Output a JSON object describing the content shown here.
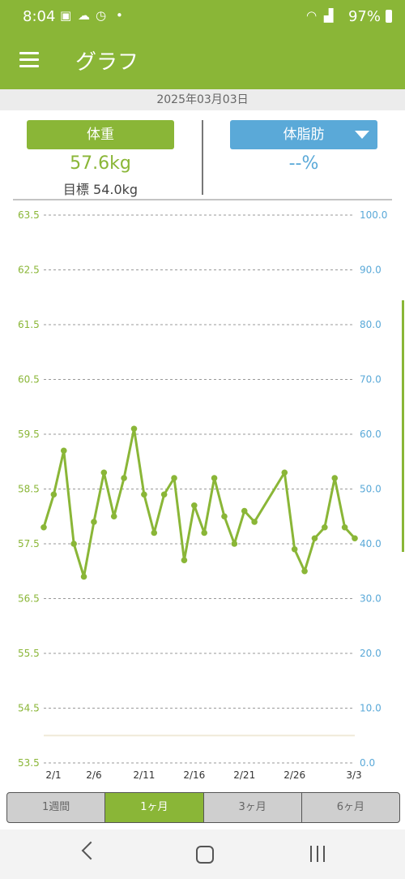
{
  "status": {
    "time": "8:04",
    "battery": "97%"
  },
  "app": {
    "title": "グラフ",
    "date": "2025年03月03日"
  },
  "weight": {
    "button": "体重",
    "value": "57.6kg",
    "target": "目標 54.0kg"
  },
  "fat": {
    "button": "体脂肪",
    "value": "--%"
  },
  "colors": {
    "accent": "#8ab637",
    "blue": "#5aa9d8"
  },
  "chart_data": {
    "type": "line",
    "y_left_ticks": [
      "63.5",
      "62.5",
      "61.5",
      "60.5",
      "59.5",
      "58.5",
      "57.5",
      "56.5",
      "55.5",
      "54.5",
      "53.5"
    ],
    "y_right_ticks": [
      "100.0",
      "90.0",
      "80.0",
      "70.0",
      "60.0",
      "50.0",
      "40.0",
      "30.0",
      "20.0",
      "10.0",
      "0.0"
    ],
    "x_ticks": [
      "2/1",
      "2/6",
      "2/11",
      "2/16",
      "2/21",
      "2/26",
      "3/3"
    ],
    "ylim_left": [
      53.5,
      63.5
    ],
    "ylim_right": [
      0,
      100
    ],
    "target": 54.0,
    "series": [
      {
        "values": [
          {
            "x": "2/1",
            "y": 57.8
          },
          {
            "x": "2/2",
            "y": 58.4
          },
          {
            "x": "2/3",
            "y": 59.2
          },
          {
            "x": "2/4",
            "y": 57.5
          },
          {
            "x": "2/5",
            "y": 56.9
          },
          {
            "x": "2/6",
            "y": 57.9
          },
          {
            "x": "2/7",
            "y": 58.8
          },
          {
            "x": "2/8",
            "y": 58.0
          },
          {
            "x": "2/9",
            "y": 58.7
          },
          {
            "x": "2/10",
            "y": 59.6
          },
          {
            "x": "2/11",
            "y": 58.4
          },
          {
            "x": "2/12",
            "y": 57.7
          },
          {
            "x": "2/13",
            "y": 58.4
          },
          {
            "x": "2/14",
            "y": 58.7
          },
          {
            "x": "2/15",
            "y": 57.2
          },
          {
            "x": "2/16",
            "y": 58.2
          },
          {
            "x": "2/17",
            "y": 57.7
          },
          {
            "x": "2/18",
            "y": 58.7
          },
          {
            "x": "2/19",
            "y": 58.0
          },
          {
            "x": "2/20",
            "y": 57.5
          },
          {
            "x": "2/21",
            "y": 58.1
          },
          {
            "x": "2/22",
            "y": 57.9
          },
          {
            "x": "2/25",
            "y": 58.8
          },
          {
            "x": "2/26",
            "y": 57.4
          },
          {
            "x": "2/27",
            "y": 57.0
          },
          {
            "x": "2/28",
            "y": 57.6
          },
          {
            "x": "3/1",
            "y": 57.8
          },
          {
            "x": "3/2",
            "y": 58.7
          },
          {
            "x": "3/3",
            "y": 57.8
          },
          {
            "x": "3/4",
            "y": 57.6
          }
        ]
      }
    ]
  },
  "tabs": [
    "1週間",
    "1ヶ月",
    "3ヶ月",
    "6ヶ月"
  ],
  "active_tab": "1ヶ月"
}
